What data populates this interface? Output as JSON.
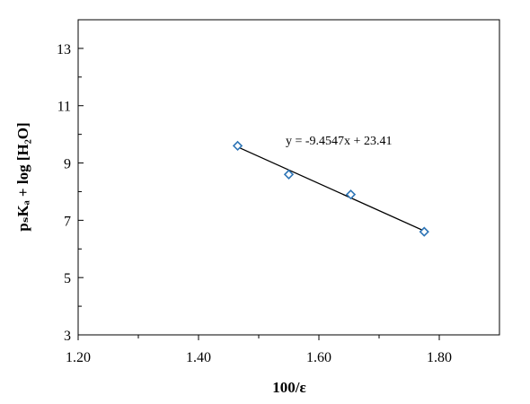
{
  "chart_data": {
    "type": "scatter",
    "x": [
      1.465,
      1.55,
      1.653,
      1.775
    ],
    "y": [
      9.6,
      8.6,
      7.9,
      6.6
    ],
    "xlim": [
      1.2,
      1.9
    ],
    "ylim": [
      3,
      14
    ],
    "x_major_ticks": [
      1.2,
      1.4,
      1.6,
      1.8
    ],
    "x_minor_ticks": [
      1.3,
      1.5,
      1.7
    ],
    "y_major_ticks": [
      3,
      5,
      7,
      9,
      11,
      13
    ],
    "y_minor_ticks": [
      4,
      6,
      8,
      10,
      12
    ],
    "xtick_labels": [
      "1.20",
      "1.40",
      "1.60",
      "1.80"
    ],
    "ytick_labels": [
      "3",
      "5",
      "7",
      "9",
      "11",
      "13"
    ],
    "xlabel": "100/ε",
    "ylabel": "pₛKₐ + log [H₂O]",
    "trendline": {
      "slope": -9.4547,
      "intercept": 23.41,
      "x_range": [
        1.465,
        1.775
      ],
      "equation": "y = -9.4547x + 23.41"
    },
    "grid": false,
    "legend": "none",
    "marker": "diamond",
    "marker_color": "#2e75b6",
    "line_color": "#000000"
  }
}
